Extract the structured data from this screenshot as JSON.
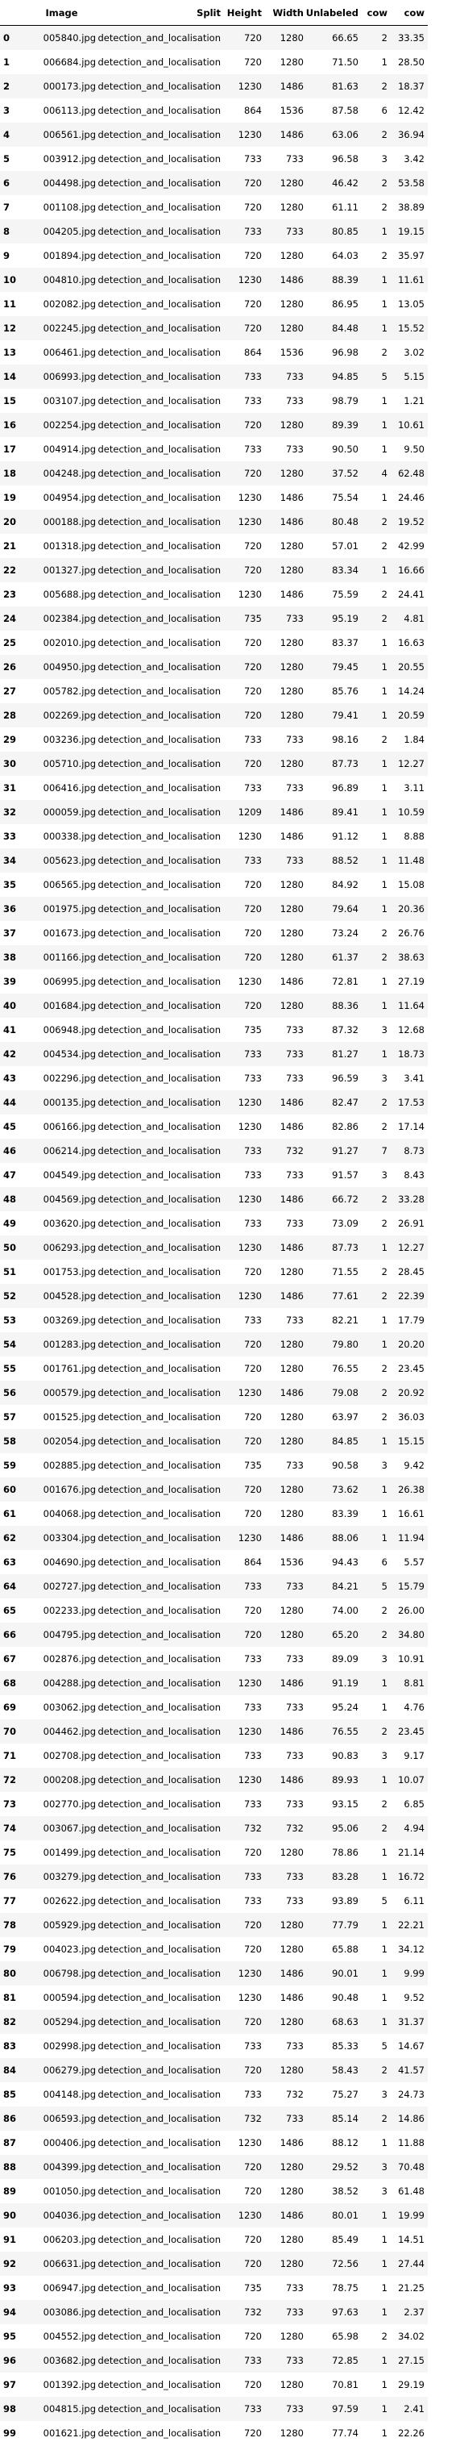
{
  "table": {
    "columns": [
      "Image",
      "Split",
      "Height",
      "Width",
      "Unlabeled",
      "cow",
      "cow"
    ],
    "rows": [
      [
        "0",
        "005840.jpg",
        "detection_and_localisation",
        "720",
        "1280",
        "66.65",
        "2",
        "33.35"
      ],
      [
        "1",
        "006684.jpg",
        "detection_and_localisation",
        "720",
        "1280",
        "71.50",
        "1",
        "28.50"
      ],
      [
        "2",
        "000173.jpg",
        "detection_and_localisation",
        "1230",
        "1486",
        "81.63",
        "2",
        "18.37"
      ],
      [
        "3",
        "006113.jpg",
        "detection_and_localisation",
        "864",
        "1536",
        "87.58",
        "6",
        "12.42"
      ],
      [
        "4",
        "006561.jpg",
        "detection_and_localisation",
        "1230",
        "1486",
        "63.06",
        "2",
        "36.94"
      ],
      [
        "5",
        "003912.jpg",
        "detection_and_localisation",
        "733",
        "733",
        "96.58",
        "3",
        "3.42"
      ],
      [
        "6",
        "004498.jpg",
        "detection_and_localisation",
        "720",
        "1280",
        "46.42",
        "2",
        "53.58"
      ],
      [
        "7",
        "001108.jpg",
        "detection_and_localisation",
        "720",
        "1280",
        "61.11",
        "2",
        "38.89"
      ],
      [
        "8",
        "004205.jpg",
        "detection_and_localisation",
        "733",
        "733",
        "80.85",
        "1",
        "19.15"
      ],
      [
        "9",
        "001894.jpg",
        "detection_and_localisation",
        "720",
        "1280",
        "64.03",
        "2",
        "35.97"
      ],
      [
        "10",
        "004810.jpg",
        "detection_and_localisation",
        "1230",
        "1486",
        "88.39",
        "1",
        "11.61"
      ],
      [
        "11",
        "002082.jpg",
        "detection_and_localisation",
        "720",
        "1280",
        "86.95",
        "1",
        "13.05"
      ],
      [
        "12",
        "002245.jpg",
        "detection_and_localisation",
        "720",
        "1280",
        "84.48",
        "1",
        "15.52"
      ],
      [
        "13",
        "006461.jpg",
        "detection_and_localisation",
        "864",
        "1536",
        "96.98",
        "2",
        "3.02"
      ],
      [
        "14",
        "006993.jpg",
        "detection_and_localisation",
        "733",
        "733",
        "94.85",
        "5",
        "5.15"
      ],
      [
        "15",
        "003107.jpg",
        "detection_and_localisation",
        "733",
        "733",
        "98.79",
        "1",
        "1.21"
      ],
      [
        "16",
        "002254.jpg",
        "detection_and_localisation",
        "720",
        "1280",
        "89.39",
        "1",
        "10.61"
      ],
      [
        "17",
        "004914.jpg",
        "detection_and_localisation",
        "733",
        "733",
        "90.50",
        "1",
        "9.50"
      ],
      [
        "18",
        "004248.jpg",
        "detection_and_localisation",
        "720",
        "1280",
        "37.52",
        "4",
        "62.48"
      ],
      [
        "19",
        "004954.jpg",
        "detection_and_localisation",
        "1230",
        "1486",
        "75.54",
        "1",
        "24.46"
      ],
      [
        "20",
        "000188.jpg",
        "detection_and_localisation",
        "1230",
        "1486",
        "80.48",
        "2",
        "19.52"
      ],
      [
        "21",
        "001318.jpg",
        "detection_and_localisation",
        "720",
        "1280",
        "57.01",
        "2",
        "42.99"
      ],
      [
        "22",
        "001327.jpg",
        "detection_and_localisation",
        "720",
        "1280",
        "83.34",
        "1",
        "16.66"
      ],
      [
        "23",
        "005688.jpg",
        "detection_and_localisation",
        "1230",
        "1486",
        "75.59",
        "2",
        "24.41"
      ],
      [
        "24",
        "002384.jpg",
        "detection_and_localisation",
        "735",
        "733",
        "95.19",
        "2",
        "4.81"
      ],
      [
        "25",
        "002010.jpg",
        "detection_and_localisation",
        "720",
        "1280",
        "83.37",
        "1",
        "16.63"
      ],
      [
        "26",
        "004950.jpg",
        "detection_and_localisation",
        "720",
        "1280",
        "79.45",
        "1",
        "20.55"
      ],
      [
        "27",
        "005782.jpg",
        "detection_and_localisation",
        "720",
        "1280",
        "85.76",
        "1",
        "14.24"
      ],
      [
        "28",
        "002269.jpg",
        "detection_and_localisation",
        "720",
        "1280",
        "79.41",
        "1",
        "20.59"
      ],
      [
        "29",
        "003236.jpg",
        "detection_and_localisation",
        "733",
        "733",
        "98.16",
        "2",
        "1.84"
      ],
      [
        "30",
        "005710.jpg",
        "detection_and_localisation",
        "720",
        "1280",
        "87.73",
        "1",
        "12.27"
      ],
      [
        "31",
        "006416.jpg",
        "detection_and_localisation",
        "733",
        "733",
        "96.89",
        "1",
        "3.11"
      ],
      [
        "32",
        "000059.jpg",
        "detection_and_localisation",
        "1209",
        "1486",
        "89.41",
        "1",
        "10.59"
      ],
      [
        "33",
        "000338.jpg",
        "detection_and_localisation",
        "1230",
        "1486",
        "91.12",
        "1",
        "8.88"
      ],
      [
        "34",
        "005623.jpg",
        "detection_and_localisation",
        "733",
        "733",
        "88.52",
        "1",
        "11.48"
      ],
      [
        "35",
        "006565.jpg",
        "detection_and_localisation",
        "720",
        "1280",
        "84.92",
        "1",
        "15.08"
      ],
      [
        "36",
        "001975.jpg",
        "detection_and_localisation",
        "720",
        "1280",
        "79.64",
        "1",
        "20.36"
      ],
      [
        "37",
        "001673.jpg",
        "detection_and_localisation",
        "720",
        "1280",
        "73.24",
        "2",
        "26.76"
      ],
      [
        "38",
        "001166.jpg",
        "detection_and_localisation",
        "720",
        "1280",
        "61.37",
        "2",
        "38.63"
      ],
      [
        "39",
        "006995.jpg",
        "detection_and_localisation",
        "1230",
        "1486",
        "72.81",
        "1",
        "27.19"
      ],
      [
        "40",
        "001684.jpg",
        "detection_and_localisation",
        "720",
        "1280",
        "88.36",
        "1",
        "11.64"
      ],
      [
        "41",
        "006948.jpg",
        "detection_and_localisation",
        "735",
        "733",
        "87.32",
        "3",
        "12.68"
      ],
      [
        "42",
        "004534.jpg",
        "detection_and_localisation",
        "733",
        "733",
        "81.27",
        "1",
        "18.73"
      ],
      [
        "43",
        "002296.jpg",
        "detection_and_localisation",
        "733",
        "733",
        "96.59",
        "3",
        "3.41"
      ],
      [
        "44",
        "000135.jpg",
        "detection_and_localisation",
        "1230",
        "1486",
        "82.47",
        "2",
        "17.53"
      ],
      [
        "45",
        "006166.jpg",
        "detection_and_localisation",
        "1230",
        "1486",
        "82.86",
        "2",
        "17.14"
      ],
      [
        "46",
        "006214.jpg",
        "detection_and_localisation",
        "733",
        "732",
        "91.27",
        "7",
        "8.73"
      ],
      [
        "47",
        "004549.jpg",
        "detection_and_localisation",
        "733",
        "733",
        "91.57",
        "3",
        "8.43"
      ],
      [
        "48",
        "004569.jpg",
        "detection_and_localisation",
        "1230",
        "1486",
        "66.72",
        "2",
        "33.28"
      ],
      [
        "49",
        "003620.jpg",
        "detection_and_localisation",
        "733",
        "733",
        "73.09",
        "2",
        "26.91"
      ],
      [
        "50",
        "006293.jpg",
        "detection_and_localisation",
        "1230",
        "1486",
        "87.73",
        "1",
        "12.27"
      ],
      [
        "51",
        "001753.jpg",
        "detection_and_localisation",
        "720",
        "1280",
        "71.55",
        "2",
        "28.45"
      ],
      [
        "52",
        "004528.jpg",
        "detection_and_localisation",
        "1230",
        "1486",
        "77.61",
        "2",
        "22.39"
      ],
      [
        "53",
        "003269.jpg",
        "detection_and_localisation",
        "733",
        "733",
        "82.21",
        "1",
        "17.79"
      ],
      [
        "54",
        "001283.jpg",
        "detection_and_localisation",
        "720",
        "1280",
        "79.80",
        "1",
        "20.20"
      ],
      [
        "55",
        "001761.jpg",
        "detection_and_localisation",
        "720",
        "1280",
        "76.55",
        "2",
        "23.45"
      ],
      [
        "56",
        "000579.jpg",
        "detection_and_localisation",
        "1230",
        "1486",
        "79.08",
        "2",
        "20.92"
      ],
      [
        "57",
        "001525.jpg",
        "detection_and_localisation",
        "720",
        "1280",
        "63.97",
        "2",
        "36.03"
      ],
      [
        "58",
        "002054.jpg",
        "detection_and_localisation",
        "720",
        "1280",
        "84.85",
        "1",
        "15.15"
      ],
      [
        "59",
        "002885.jpg",
        "detection_and_localisation",
        "735",
        "733",
        "90.58",
        "3",
        "9.42"
      ],
      [
        "60",
        "001676.jpg",
        "detection_and_localisation",
        "720",
        "1280",
        "73.62",
        "1",
        "26.38"
      ],
      [
        "61",
        "004068.jpg",
        "detection_and_localisation",
        "720",
        "1280",
        "83.39",
        "1",
        "16.61"
      ],
      [
        "62",
        "003304.jpg",
        "detection_and_localisation",
        "1230",
        "1486",
        "88.06",
        "1",
        "11.94"
      ],
      [
        "63",
        "004690.jpg",
        "detection_and_localisation",
        "864",
        "1536",
        "94.43",
        "6",
        "5.57"
      ],
      [
        "64",
        "002727.jpg",
        "detection_and_localisation",
        "733",
        "733",
        "84.21",
        "5",
        "15.79"
      ],
      [
        "65",
        "002233.jpg",
        "detection_and_localisation",
        "720",
        "1280",
        "74.00",
        "2",
        "26.00"
      ],
      [
        "66",
        "004795.jpg",
        "detection_and_localisation",
        "720",
        "1280",
        "65.20",
        "2",
        "34.80"
      ],
      [
        "67",
        "002876.jpg",
        "detection_and_localisation",
        "733",
        "733",
        "89.09",
        "3",
        "10.91"
      ],
      [
        "68",
        "004288.jpg",
        "detection_and_localisation",
        "1230",
        "1486",
        "91.19",
        "1",
        "8.81"
      ],
      [
        "69",
        "003062.jpg",
        "detection_and_localisation",
        "733",
        "733",
        "95.24",
        "1",
        "4.76"
      ],
      [
        "70",
        "004462.jpg",
        "detection_and_localisation",
        "1230",
        "1486",
        "76.55",
        "2",
        "23.45"
      ],
      [
        "71",
        "002708.jpg",
        "detection_and_localisation",
        "733",
        "733",
        "90.83",
        "3",
        "9.17"
      ],
      [
        "72",
        "000208.jpg",
        "detection_and_localisation",
        "1230",
        "1486",
        "89.93",
        "1",
        "10.07"
      ],
      [
        "73",
        "002770.jpg",
        "detection_and_localisation",
        "733",
        "733",
        "93.15",
        "2",
        "6.85"
      ],
      [
        "74",
        "003067.jpg",
        "detection_and_localisation",
        "732",
        "732",
        "95.06",
        "2",
        "4.94"
      ],
      [
        "75",
        "001499.jpg",
        "detection_and_localisation",
        "720",
        "1280",
        "78.86",
        "1",
        "21.14"
      ],
      [
        "76",
        "003279.jpg",
        "detection_and_localisation",
        "733",
        "733",
        "83.28",
        "1",
        "16.72"
      ],
      [
        "77",
        "002622.jpg",
        "detection_and_localisation",
        "733",
        "733",
        "93.89",
        "5",
        "6.11"
      ],
      [
        "78",
        "005929.jpg",
        "detection_and_localisation",
        "720",
        "1280",
        "77.79",
        "1",
        "22.21"
      ],
      [
        "79",
        "004023.jpg",
        "detection_and_localisation",
        "720",
        "1280",
        "65.88",
        "1",
        "34.12"
      ],
      [
        "80",
        "006798.jpg",
        "detection_and_localisation",
        "1230",
        "1486",
        "90.01",
        "1",
        "9.99"
      ],
      [
        "81",
        "000594.jpg",
        "detection_and_localisation",
        "1230",
        "1486",
        "90.48",
        "1",
        "9.52"
      ],
      [
        "82",
        "005294.jpg",
        "detection_and_localisation",
        "720",
        "1280",
        "68.63",
        "1",
        "31.37"
      ],
      [
        "83",
        "002998.jpg",
        "detection_and_localisation",
        "733",
        "733",
        "85.33",
        "5",
        "14.67"
      ],
      [
        "84",
        "006279.jpg",
        "detection_and_localisation",
        "720",
        "1280",
        "58.43",
        "2",
        "41.57"
      ],
      [
        "85",
        "004148.jpg",
        "detection_and_localisation",
        "733",
        "732",
        "75.27",
        "3",
        "24.73"
      ],
      [
        "86",
        "006593.jpg",
        "detection_and_localisation",
        "732",
        "733",
        "85.14",
        "2",
        "14.86"
      ],
      [
        "87",
        "000406.jpg",
        "detection_and_localisation",
        "1230",
        "1486",
        "88.12",
        "1",
        "11.88"
      ],
      [
        "88",
        "004399.jpg",
        "detection_and_localisation",
        "720",
        "1280",
        "29.52",
        "3",
        "70.48"
      ],
      [
        "89",
        "001050.jpg",
        "detection_and_localisation",
        "720",
        "1280",
        "38.52",
        "3",
        "61.48"
      ],
      [
        "90",
        "004036.jpg",
        "detection_and_localisation",
        "1230",
        "1486",
        "80.01",
        "1",
        "19.99"
      ],
      [
        "91",
        "006203.jpg",
        "detection_and_localisation",
        "720",
        "1280",
        "85.49",
        "1",
        "14.51"
      ],
      [
        "92",
        "006631.jpg",
        "detection_and_localisation",
        "720",
        "1280",
        "72.56",
        "1",
        "27.44"
      ],
      [
        "93",
        "006947.jpg",
        "detection_and_localisation",
        "735",
        "733",
        "78.75",
        "1",
        "21.25"
      ],
      [
        "94",
        "003086.jpg",
        "detection_and_localisation",
        "732",
        "733",
        "97.63",
        "1",
        "2.37"
      ],
      [
        "95",
        "004552.jpg",
        "detection_and_localisation",
        "720",
        "1280",
        "65.98",
        "2",
        "34.02"
      ],
      [
        "96",
        "003682.jpg",
        "detection_and_localisation",
        "733",
        "733",
        "72.85",
        "1",
        "27.15"
      ],
      [
        "97",
        "001392.jpg",
        "detection_and_localisation",
        "720",
        "1280",
        "70.81",
        "1",
        "29.19"
      ],
      [
        "98",
        "004815.jpg",
        "detection_and_localisation",
        "733",
        "733",
        "97.59",
        "1",
        "2.41"
      ],
      [
        "99",
        "001621.jpg",
        "detection_and_localisation",
        "720",
        "1280",
        "77.74",
        "1",
        "22.26"
      ]
    ]
  }
}
